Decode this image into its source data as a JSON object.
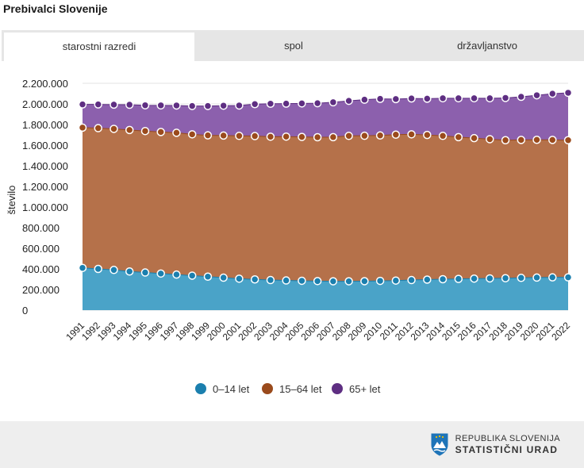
{
  "page": {
    "title": "Prebivalci Slovenije",
    "tabs": [
      {
        "label": "starostni razredi",
        "active": true
      },
      {
        "label": "spol",
        "active": false
      },
      {
        "label": "državljanstvo",
        "active": false
      }
    ]
  },
  "brand": {
    "line1": "REPUBLIKA SLOVENIJA",
    "line2": "STATISTIČNI URAD",
    "logo_icon": "coat-of-arms-icon"
  },
  "chart_data": {
    "type": "area",
    "stacked": true,
    "title": "",
    "xlabel": "",
    "ylabel": "število",
    "ylim": [
      0,
      2200000
    ],
    "yticks": [
      0,
      200000,
      400000,
      600000,
      800000,
      1000000,
      1200000,
      1400000,
      1600000,
      1800000,
      2000000,
      2200000
    ],
    "ytick_labels": [
      "0",
      "200.000",
      "400.000",
      "600.000",
      "800.000",
      "1.000.000",
      "1.200.000",
      "1.400.000",
      "1.600.000",
      "1.800.000",
      "2.000.000",
      "2.200.000"
    ],
    "grid": true,
    "legend_position": "bottom",
    "categories": [
      "1991",
      "1992",
      "1993",
      "1994",
      "1995",
      "1996",
      "1997",
      "1998",
      "1999",
      "2000",
      "2001",
      "2002",
      "2003",
      "2004",
      "2005",
      "2006",
      "2007",
      "2008",
      "2009",
      "2010",
      "2011",
      "2012",
      "2013",
      "2014",
      "2015",
      "2016",
      "2017",
      "2018",
      "2019",
      "2020",
      "2021",
      "2022"
    ],
    "series": [
      {
        "name": "0–14 let",
        "color": "#4aa3c8",
        "marker": "#1b7fae",
        "values": [
          410000,
          400000,
          390000,
          375000,
          365000,
          355000,
          345000,
          335000,
          325000,
          315000,
          305000,
          298000,
          292000,
          288000,
          285000,
          282000,
          280000,
          280000,
          281000,
          284000,
          287000,
          292000,
          296000,
          300000,
          303000,
          306000,
          308000,
          310000,
          313000,
          316000,
          318000,
          318000
        ]
      },
      {
        "name": "15–64 let",
        "color": "#b5714a",
        "marker": "#9a4a1c",
        "values": [
          1360000,
          1365000,
          1368000,
          1372000,
          1372000,
          1373000,
          1375000,
          1370000,
          1370000,
          1378000,
          1385000,
          1390000,
          1390000,
          1395000,
          1395000,
          1395000,
          1398000,
          1410000,
          1410000,
          1410000,
          1415000,
          1413000,
          1403000,
          1390000,
          1375000,
          1362000,
          1350000,
          1338000,
          1338000,
          1336000,
          1333000,
          1330000
        ]
      },
      {
        "name": "65+ let",
        "color": "#8c60ad",
        "marker": "#5e2e82",
        "values": [
          225000,
          230000,
          235000,
          245000,
          250000,
          258000,
          265000,
          275000,
          285000,
          290000,
          295000,
          310000,
          320000,
          320000,
          325000,
          330000,
          338000,
          340000,
          350000,
          355000,
          345000,
          348000,
          352000,
          365000,
          377000,
          387000,
          397000,
          410000,
          418000,
          432000,
          448000,
          460000
        ]
      }
    ]
  }
}
